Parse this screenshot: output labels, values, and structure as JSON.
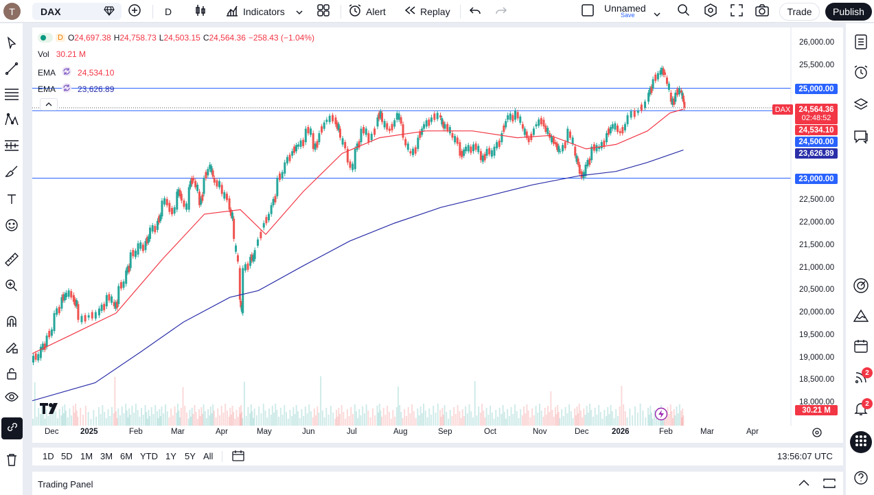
{
  "topbar": {
    "avatar_letter": "T",
    "symbol": "DAX",
    "interval": "D",
    "indicators_label": "Indicators",
    "alert_label": "Alert",
    "replay_label": "Replay",
    "layout_name": "Unnamed",
    "layout_save": "Save",
    "trade_label": "Trade",
    "publish_label": "Publish"
  },
  "legend": {
    "interval": "D",
    "open_label": "O",
    "open": "24,697.38",
    "high_label": "H",
    "high": "24,758.73",
    "low_label": "L",
    "low": "24,503.15",
    "close_label": "C",
    "close": "24,564.36",
    "change": "−258.43 (−1.04%)",
    "vol_label": "Vol",
    "vol": "30.21 M",
    "ema_label": "EMA",
    "ema1": "24,534.10",
    "ema2": "23,626.89"
  },
  "price_axis": {
    "ticks": [
      "26,000.00",
      "25,500.00",
      "25,000.00",
      "24,500.00",
      "24,000.00",
      "23,500.00",
      "23,000.00",
      "22,500.00",
      "22,000.00",
      "21,500.00",
      "21,000.00",
      "20,500.00",
      "20,000.00",
      "19,500.00",
      "19,000.00",
      "18,500.00",
      "18,000.00"
    ],
    "labels": {
      "line_25000": "25,000.00",
      "symbol_tag": "DAX",
      "last_price": "24,564.36",
      "countdown": "02:48:52",
      "ema1": "24,534.10",
      "line_24500": "24,500.00",
      "ema2": "23,626.89",
      "line_23000": "23,000.00",
      "volume": "30.21 M"
    }
  },
  "time_axis": [
    "Dec",
    "2025",
    "Feb",
    "Mar",
    "Apr",
    "May",
    "Jun",
    "Jul",
    "Aug",
    "Sep",
    "Oct",
    "Nov",
    "Dec",
    "2026",
    "Feb",
    "Mar",
    "Apr"
  ],
  "range_bar": {
    "ranges": [
      "1D",
      "5D",
      "1M",
      "3M",
      "6M",
      "YTD",
      "1Y",
      "5Y",
      "All"
    ],
    "time": "13:56:07 UTC"
  },
  "panel": {
    "title": "Trading Panel"
  },
  "right_badges": {
    "news": "2",
    "alerts": "2"
  },
  "colors": {
    "up": "#26a69a",
    "down": "#ef5350",
    "ema_fast": "#f23645",
    "ema_slow": "#2a2ea8",
    "hline": "#2962ff"
  },
  "chart_data": {
    "type": "candlestick",
    "symbol": "DAX",
    "interval": "D",
    "y_range": [
      17900,
      26200
    ],
    "x_range": [
      "2024-11-20",
      "2026-04-20"
    ],
    "horizontal_lines": [
      25000,
      24500,
      23000
    ],
    "series": [
      {
        "name": "EMA",
        "last": 24534.1,
        "points": [
          [
            "2024-11-20",
            19100
          ],
          [
            "2024-12-15",
            19500
          ],
          [
            "2025-01-15",
            20000
          ],
          [
            "2025-02-15",
            21200
          ],
          [
            "2025-03-15",
            22200
          ],
          [
            "2025-04-08",
            22300
          ],
          [
            "2025-04-25",
            21750
          ],
          [
            "2025-05-20",
            22700
          ],
          [
            "2025-06-15",
            23550
          ],
          [
            "2025-07-10",
            23900
          ],
          [
            "2025-08-10",
            24050
          ],
          [
            "2025-09-10",
            24050
          ],
          [
            "2025-10-10",
            23900
          ],
          [
            "2025-11-01",
            23950
          ],
          [
            "2025-11-25",
            23650
          ],
          [
            "2025-12-15",
            23750
          ],
          [
            "2026-01-05",
            24050
          ],
          [
            "2026-01-20",
            24450
          ],
          [
            "2026-01-29",
            24534
          ]
        ]
      },
      {
        "name": "EMA",
        "last": 23626.89,
        "points": [
          [
            "2024-11-20",
            18050
          ],
          [
            "2025-01-01",
            18450
          ],
          [
            "2025-02-01",
            19150
          ],
          [
            "2025-03-01",
            19800
          ],
          [
            "2025-04-01",
            20350
          ],
          [
            "2025-04-20",
            20500
          ],
          [
            "2025-05-20",
            21050
          ],
          [
            "2025-06-20",
            21600
          ],
          [
            "2025-07-20",
            22000
          ],
          [
            "2025-08-20",
            22350
          ],
          [
            "2025-09-20",
            22600
          ],
          [
            "2025-10-20",
            22850
          ],
          [
            "2025-11-20",
            23050
          ],
          [
            "2025-12-15",
            23150
          ],
          [
            "2026-01-05",
            23350
          ],
          [
            "2026-01-29",
            23627
          ]
        ]
      }
    ],
    "candles": [
      [
        "2024-11-20",
        18900,
        19050
      ],
      [
        "2024-11-25",
        19000,
        19250
      ],
      [
        "2024-11-29",
        19250,
        19500
      ],
      [
        "2024-12-04",
        19600,
        20000
      ],
      [
        "2024-12-09",
        20100,
        20350
      ],
      [
        "2024-12-12",
        20350,
        20450
      ],
      [
        "2024-12-17",
        20400,
        20250
      ],
      [
        "2024-12-20",
        20200,
        19850
      ],
      [
        "2024-12-27",
        19900,
        19950
      ],
      [
        "2025-01-03",
        19950,
        20100
      ],
      [
        "2025-01-08",
        20150,
        20400
      ],
      [
        "2025-01-13",
        20250,
        20150
      ],
      [
        "2025-01-16",
        20200,
        20600
      ],
      [
        "2025-01-21",
        20650,
        20950
      ],
      [
        "2025-01-24",
        21000,
        21350
      ],
      [
        "2025-01-29",
        21300,
        21550
      ],
      [
        "2025-02-03",
        21400,
        21600
      ],
      [
        "2025-02-06",
        21650,
        21900
      ],
      [
        "2025-02-11",
        21850,
        22050
      ],
      [
        "2025-02-14",
        22150,
        22500
      ],
      [
        "2025-02-19",
        22450,
        22250
      ],
      [
        "2025-02-24",
        22300,
        22700
      ],
      [
        "2025-02-27",
        22650,
        22500
      ],
      [
        "2025-03-04",
        22300,
        22800
      ],
      [
        "2025-03-07",
        23000,
        22950
      ],
      [
        "2025-03-11",
        22700,
        22400
      ],
      [
        "2025-03-14",
        22650,
        23000
      ],
      [
        "2025-03-18",
        23200,
        23300
      ],
      [
        "2025-03-21",
        23000,
        22900
      ],
      [
        "2025-03-26",
        22850,
        22650
      ],
      [
        "2025-03-31",
        22550,
        22300
      ],
      [
        "2025-04-03",
        22100,
        21650
      ],
      [
        "2025-04-07",
        21000,
        20300
      ],
      [
        "2025-04-09",
        20000,
        21000
      ],
      [
        "2025-04-14",
        21050,
        21250
      ],
      [
        "2025-04-17",
        21200,
        21400
      ],
      [
        "2025-04-23",
        21900,
        22000
      ],
      [
        "2025-04-28",
        22200,
        22400
      ],
      [
        "2025-05-02",
        22600,
        23000
      ],
      [
        "2025-05-07",
        23100,
        23350
      ],
      [
        "2025-05-12",
        23500,
        23600
      ],
      [
        "2025-05-16",
        23700,
        23750
      ],
      [
        "2025-05-21",
        23800,
        24100
      ],
      [
        "2025-05-26",
        24000,
        23650
      ],
      [
        "2025-05-30",
        23800,
        24000
      ],
      [
        "2025-06-04",
        24250,
        24300
      ],
      [
        "2025-06-10",
        24350,
        24200
      ],
      [
        "2025-06-13",
        24100,
        23900
      ],
      [
        "2025-06-18",
        23650,
        23350
      ],
      [
        "2025-06-23",
        23200,
        23650
      ],
      [
        "2025-06-27",
        23800,
        24100
      ],
      [
        "2025-07-02",
        24000,
        23800
      ],
      [
        "2025-07-08",
        24150,
        24350
      ],
      [
        "2025-07-11",
        24450,
        24250
      ],
      [
        "2025-07-16",
        24100,
        24050
      ],
      [
        "2025-07-21",
        24300,
        24450
      ],
      [
        "2025-07-25",
        24200,
        23900
      ],
      [
        "2025-07-30",
        23600,
        23550
      ],
      [
        "2025-08-04",
        23650,
        23900
      ],
      [
        "2025-08-08",
        24100,
        24200
      ],
      [
        "2025-08-13",
        24250,
        24350
      ],
      [
        "2025-08-19",
        24400,
        24350
      ],
      [
        "2025-08-22",
        24100,
        24200
      ],
      [
        "2025-08-27",
        24000,
        23900
      ],
      [
        "2025-09-01",
        23800,
        23500
      ],
      [
        "2025-09-05",
        23600,
        23700
      ],
      [
        "2025-09-10",
        23600,
        23750
      ],
      [
        "2025-09-15",
        23600,
        23400
      ],
      [
        "2025-09-19",
        23500,
        23650
      ],
      [
        "2025-09-24",
        23500,
        23700
      ],
      [
        "2025-09-29",
        23800,
        24000
      ],
      [
        "2025-10-03",
        24300,
        24400
      ],
      [
        "2025-10-08",
        24300,
        24500
      ],
      [
        "2025-10-13",
        24200,
        24100
      ],
      [
        "2025-10-17",
        23900,
        23800
      ],
      [
        "2025-10-22",
        24150,
        24200
      ],
      [
        "2025-10-27",
        24300,
        24150
      ],
      [
        "2025-10-31",
        24000,
        23900
      ],
      [
        "2025-11-04",
        23800,
        23750
      ],
      [
        "2025-11-07",
        23600,
        23600
      ],
      [
        "2025-11-12",
        23800,
        24100
      ],
      [
        "2025-11-17",
        23700,
        23500
      ],
      [
        "2025-11-20",
        23300,
        23100
      ],
      [
        "2025-11-24",
        23050,
        23300
      ],
      [
        "2025-11-28",
        23400,
        23700
      ],
      [
        "2025-12-03",
        23650,
        23700
      ],
      [
        "2025-12-08",
        23800,
        24000
      ],
      [
        "2025-12-12",
        24100,
        24200
      ],
      [
        "2025-12-17",
        24050,
        24000
      ],
      [
        "2025-12-22",
        24200,
        24400
      ],
      [
        "2025-12-29",
        24450,
        24500
      ],
      [
        "2026-01-05",
        24700,
        24900
      ],
      [
        "2026-01-08",
        25000,
        25200
      ],
      [
        "2026-01-13",
        25300,
        25400
      ],
      [
        "2026-01-16",
        25350,
        25300
      ],
      [
        "2026-01-20",
        24900,
        24700
      ],
      [
        "2026-01-23",
        24700,
        24900
      ],
      [
        "2026-01-27",
        24950,
        24900
      ],
      [
        "2026-01-29",
        24697,
        24564
      ]
    ],
    "volume_last": "30.21 M"
  }
}
